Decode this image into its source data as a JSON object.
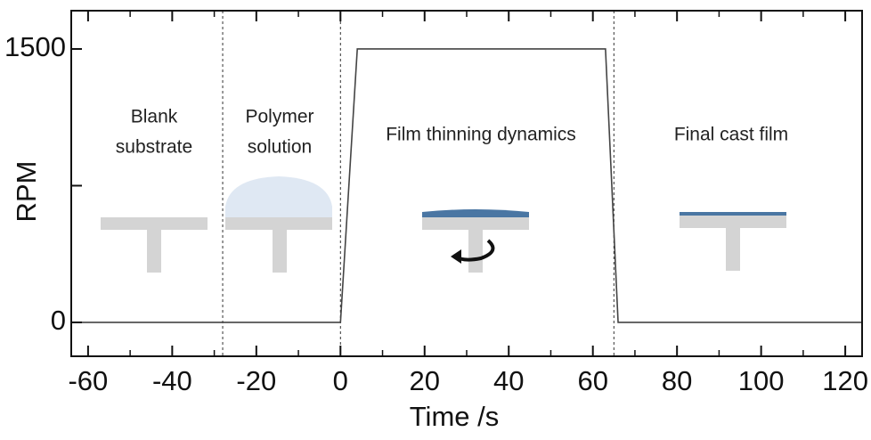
{
  "chart_data": {
    "type": "line",
    "x_label": "Time /s",
    "y_label": "RPM",
    "x": [
      -64,
      0,
      4,
      63,
      66,
      124
    ],
    "series": [
      {
        "color": "#444444",
        "values": [
          0,
          0,
          1500,
          1500,
          0,
          0
        ]
      }
    ],
    "xlim": [
      -64,
      124
    ],
    "ylim": [
      -186,
      1710
    ],
    "xticks": [
      -60,
      -40,
      -20,
      0,
      20,
      40,
      60,
      80,
      100,
      120
    ],
    "xminor_ticks": [
      -50,
      -30,
      -10,
      10,
      30,
      50,
      70,
      90,
      110
    ],
    "yticks": [
      0,
      1500
    ],
    "yminor_ticks": [
      750
    ],
    "stage_dividers": [
      -28,
      0,
      65
    ],
    "stages": [
      {
        "lines": [
          "Blank",
          "substrate"
        ]
      },
      {
        "lines": [
          "Polymer",
          "solution"
        ]
      },
      {
        "lines": [
          "Film thinning dynamics"
        ]
      },
      {
        "lines": [
          "Final cast film"
        ]
      }
    ]
  }
}
